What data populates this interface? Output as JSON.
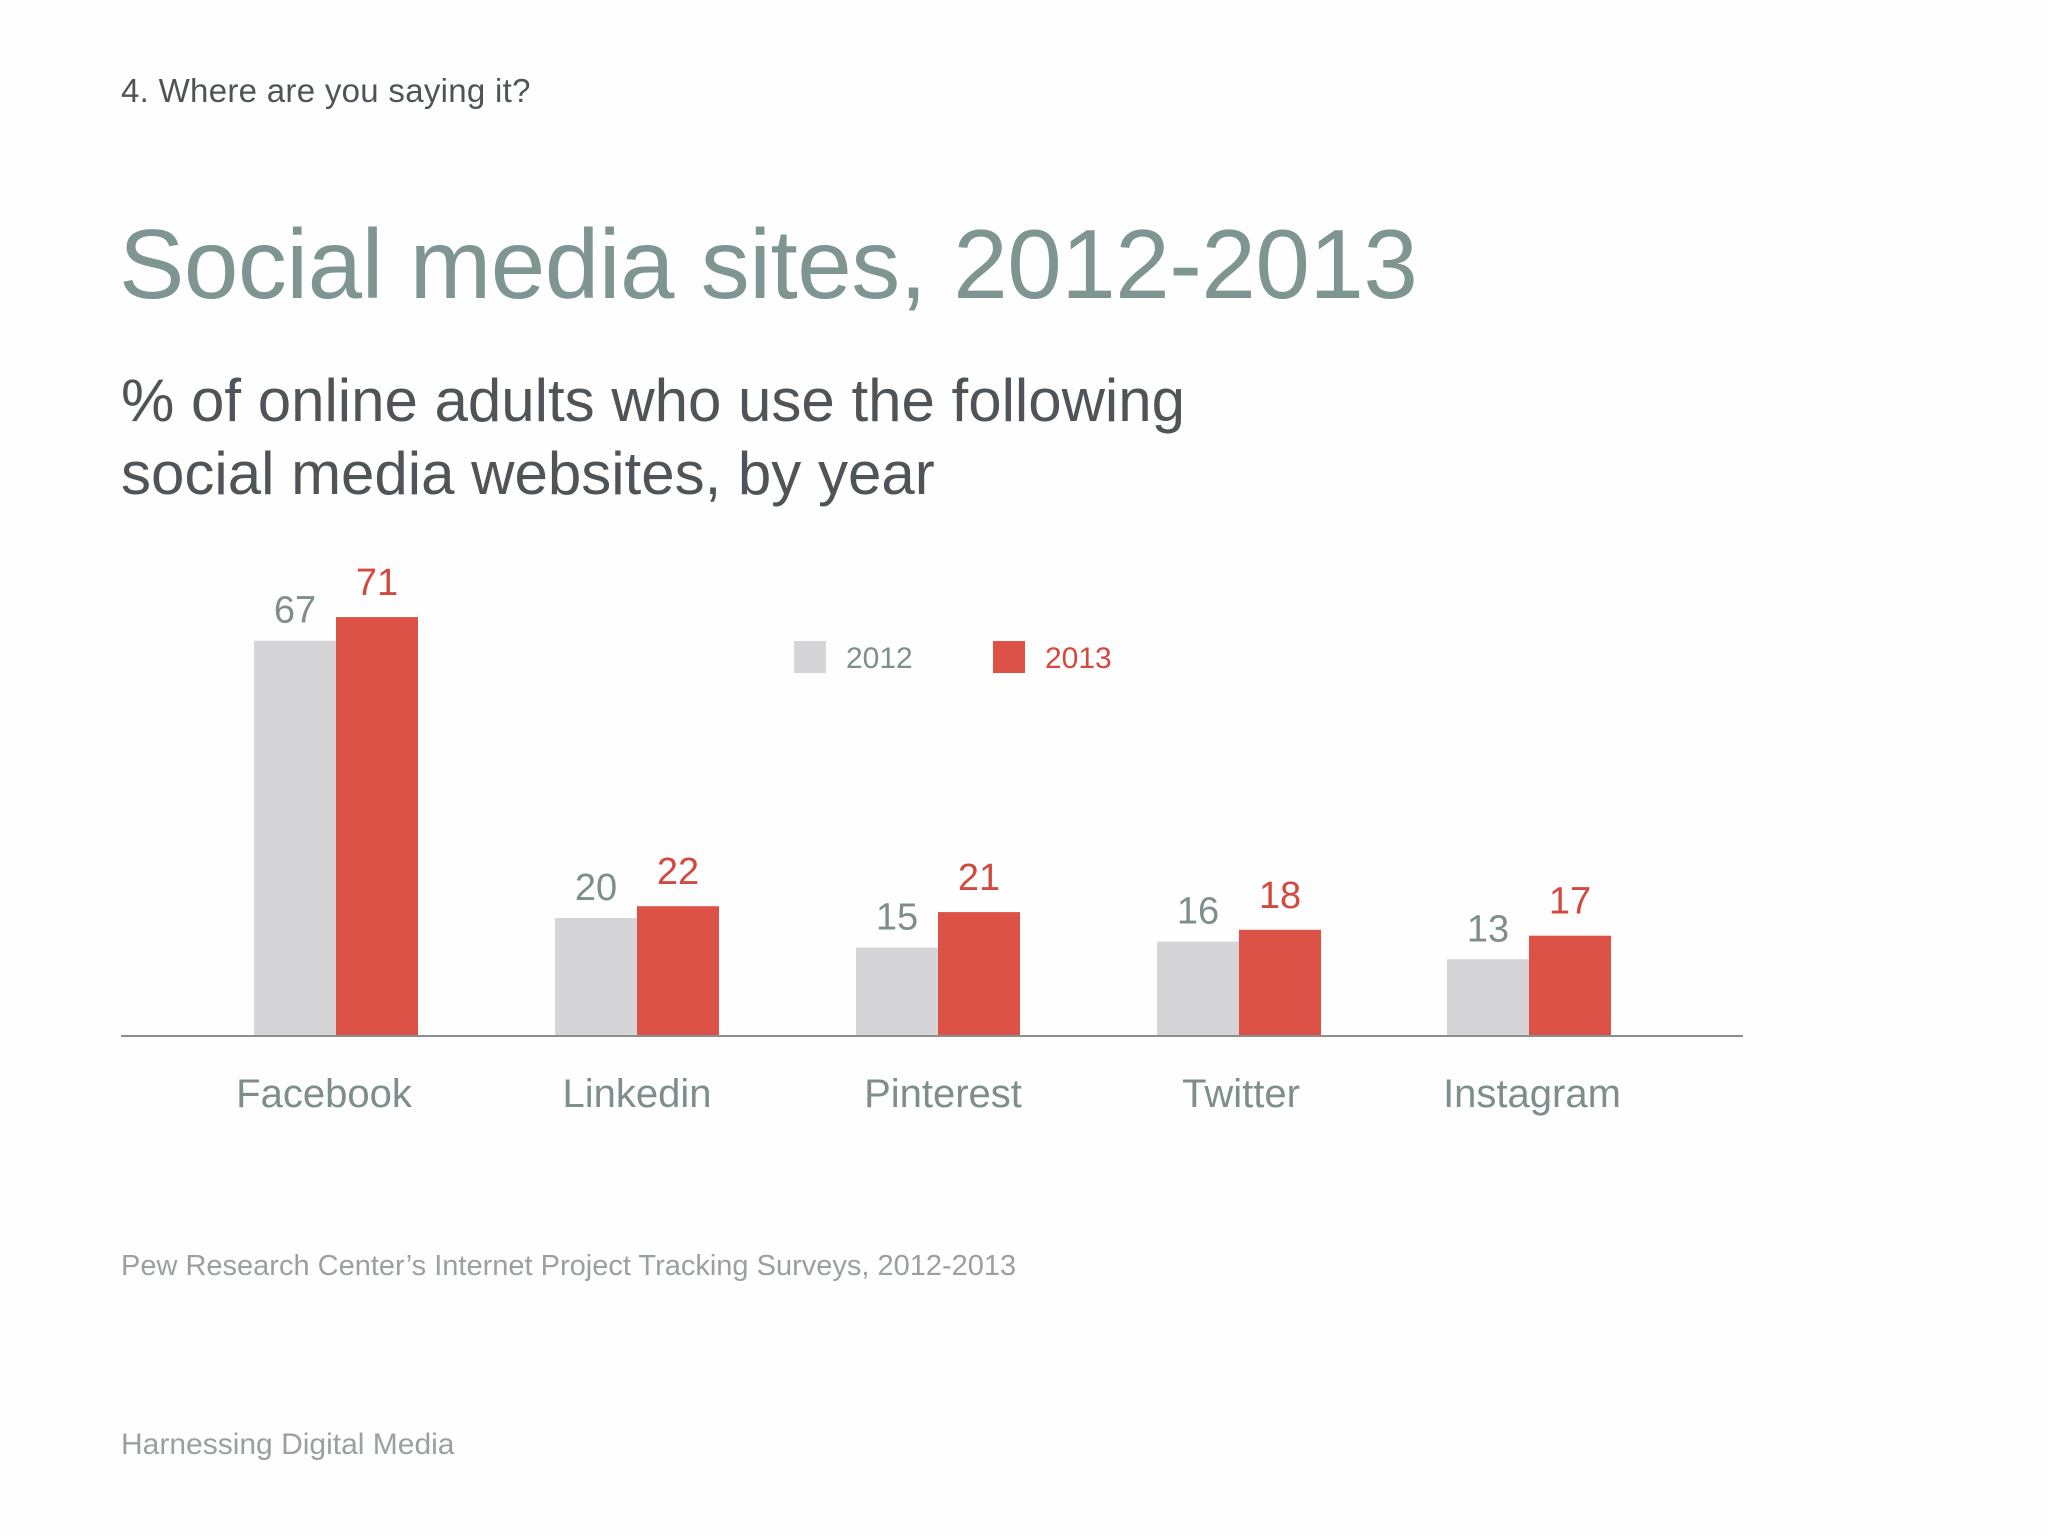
{
  "header": {
    "section": "4. Where are you saying it?",
    "title": "Social media sites, 2012-2013",
    "subtitle_line1": "% of online adults who use the following",
    "subtitle_line2": "social media websites, by year"
  },
  "source": "Pew Research Center’s Internet Project Tracking Surveys, 2012-2013",
  "footer": "Harnessing Digital Media",
  "colors": {
    "series_2012": "#d5d5d7",
    "series_2013": "#dc5246",
    "label_2012": "#7d8e8d",
    "label_2013": "#d24a3f",
    "axis": "#8b8e90"
  },
  "chart_data": {
    "type": "bar",
    "categories": [
      "Facebook",
      "Linkedin",
      "Pinterest",
      "Twitter",
      "Instagram"
    ],
    "series": [
      {
        "name": "2012",
        "values": [
          67,
          20,
          15,
          16,
          13
        ]
      },
      {
        "name": "2013",
        "values": [
          71,
          22,
          21,
          18,
          17
        ]
      }
    ],
    "title": "Social media sites, 2012-2013",
    "subtitle": "% of online adults who use the following social media websites, by year",
    "xlabel": "",
    "ylabel": "",
    "ylim": [
      0,
      75
    ],
    "grid": false,
    "legend": "top-center",
    "data_labels": true
  }
}
